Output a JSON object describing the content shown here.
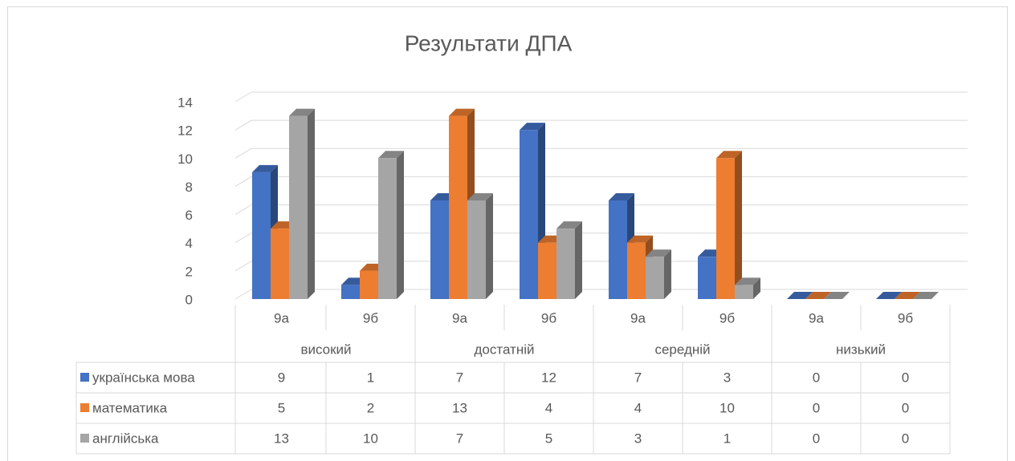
{
  "chart_data": {
    "type": "bar3d",
    "title": "Результати ДПА",
    "categories": [
      "9а",
      "9б",
      "9а",
      "9б",
      "9а",
      "9б",
      "9а",
      "9б"
    ],
    "groups": [
      "високий",
      "достатній",
      "середній",
      "низький"
    ],
    "series": [
      {
        "name": "українська мова",
        "color": "#4472c4",
        "values": [
          9,
          1,
          7,
          12,
          7,
          3,
          0,
          0
        ]
      },
      {
        "name": "математика",
        "color": "#ed7d31",
        "values": [
          5,
          2,
          13,
          4,
          4,
          10,
          0,
          0
        ]
      },
      {
        "name": "англійська",
        "color": "#a5a5a5",
        "values": [
          13,
          10,
          7,
          5,
          3,
          1,
          0,
          0
        ]
      }
    ],
    "ylim": [
      0,
      14
    ],
    "yticks": [
      0,
      2,
      4,
      6,
      8,
      10,
      12,
      14
    ],
    "grid": true,
    "data_table": true
  }
}
